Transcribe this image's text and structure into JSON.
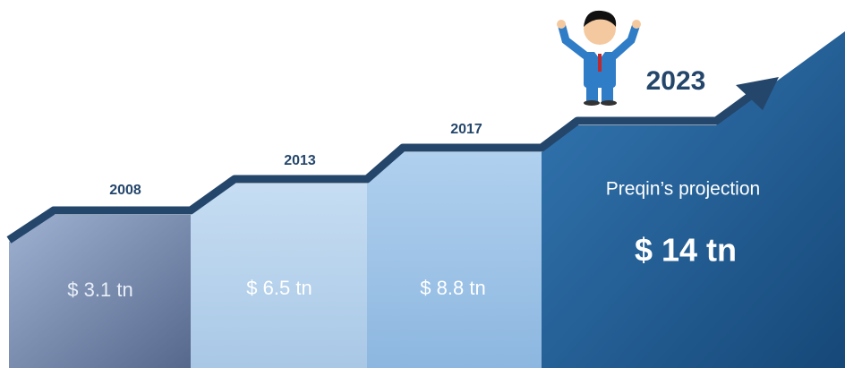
{
  "steps": [
    {
      "year": "2008",
      "value": "$ 3.1 tn"
    },
    {
      "year": "2013",
      "value": "$ 6.5 tn"
    },
    {
      "year": "2017",
      "value": "$ 8.8 tn"
    },
    {
      "year": "2023",
      "caption": "Preqin’s projection",
      "value": "$ 14 tn"
    }
  ]
}
